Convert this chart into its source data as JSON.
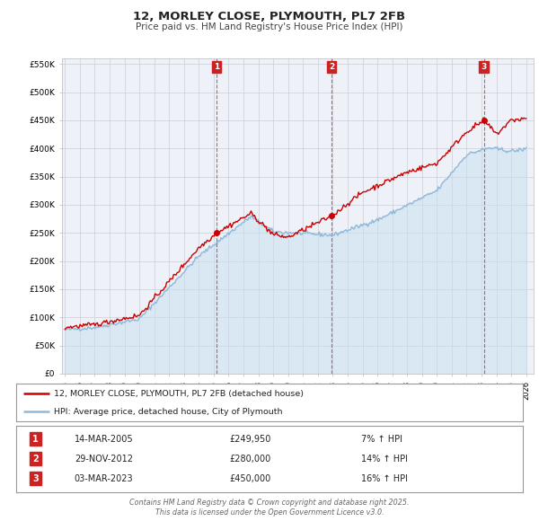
{
  "title": "12, MORLEY CLOSE, PLYMOUTH, PL7 2FB",
  "subtitle": "Price paid vs. HM Land Registry's House Price Index (HPI)",
  "title_fontsize": 9.5,
  "subtitle_fontsize": 7.5,
  "ylim": [
    0,
    560000
  ],
  "yticks": [
    0,
    50000,
    100000,
    150000,
    200000,
    250000,
    300000,
    350000,
    400000,
    450000,
    500000,
    550000
  ],
  "ytick_labels": [
    "£0",
    "£50K",
    "£100K",
    "£150K",
    "£200K",
    "£250K",
    "£300K",
    "£350K",
    "£400K",
    "£450K",
    "£500K",
    "£550K"
  ],
  "xlim_start": 1994.8,
  "xlim_end": 2026.5,
  "plot_bg_color": "#eef2f8",
  "grid_color": "#c8cdd8",
  "red_line_color": "#cc0000",
  "blue_line_color": "#90b8d8",
  "blue_fill_color": "#c8dff0",
  "vline_color": "#dd4444",
  "annotation_bg": "#cc2222",
  "annotation_text_color": "white",
  "sale1_x": 2005.19,
  "sale1_y": 249950,
  "sale1_label": "1",
  "sale1_date": "14-MAR-2005",
  "sale1_price": "£249,950",
  "sale1_hpi": "7% ↑ HPI",
  "sale2_x": 2012.91,
  "sale2_y": 280000,
  "sale2_label": "2",
  "sale2_date": "29-NOV-2012",
  "sale2_price": "£280,000",
  "sale2_hpi": "14% ↑ HPI",
  "sale3_x": 2023.17,
  "sale3_y": 450000,
  "sale3_label": "3",
  "sale3_date": "03-MAR-2023",
  "sale3_price": "£450,000",
  "sale3_hpi": "16% ↑ HPI",
  "legend_line1": "12, MORLEY CLOSE, PLYMOUTH, PL7 2FB (detached house)",
  "legend_line2": "HPI: Average price, detached house, City of Plymouth",
  "footer_line1": "Contains HM Land Registry data © Crown copyright and database right 2025.",
  "footer_line2": "This data is licensed under the Open Government Licence v3.0."
}
